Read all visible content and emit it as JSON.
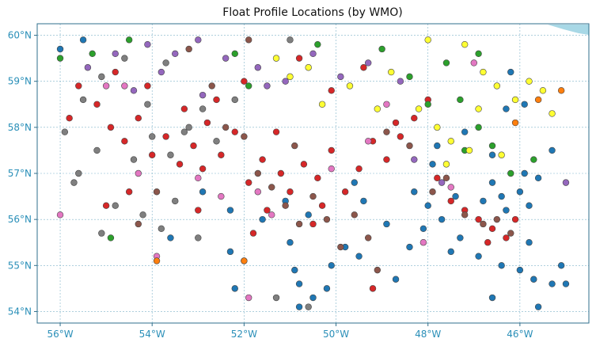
{
  "chart_data": {
    "type": "scatter",
    "title": "Float Profile Locations (by WMO)",
    "xlim": [
      -56.5,
      -44.5
    ],
    "ylim": [
      53.75,
      60.25
    ],
    "xticks": [
      -56,
      -54,
      -52,
      -50,
      -48,
      -46
    ],
    "xtick_labels": [
      "56°W",
      "54°W",
      "52°W",
      "50°W",
      "48°W",
      "46°W"
    ],
    "yticks": [
      54,
      55,
      56,
      57,
      58,
      59,
      60
    ],
    "ytick_labels": [
      "54°N",
      "55°N",
      "56°N",
      "57°N",
      "58°N",
      "59°N",
      "60°N"
    ],
    "grid": true,
    "land_color": "#a8d8e6",
    "series": [
      {
        "color": "#1f77b4",
        "points": [
          [
            -56.0,
            59.7
          ],
          [
            -55.5,
            59.9
          ],
          [
            -52.2,
            54.5
          ],
          [
            -51.0,
            55.5
          ],
          [
            -50.9,
            54.9
          ],
          [
            -50.8,
            54.6
          ],
          [
            -50.8,
            54.1
          ],
          [
            -50.5,
            54.3
          ],
          [
            -50.2,
            54.5
          ],
          [
            -50.1,
            55.0
          ],
          [
            -49.8,
            55.4
          ],
          [
            -49.5,
            55.2
          ],
          [
            -49.4,
            56.4
          ],
          [
            -48.9,
            55.9
          ],
          [
            -48.7,
            54.7
          ],
          [
            -48.4,
            55.4
          ],
          [
            -48.1,
            55.8
          ],
          [
            -48.0,
            56.3
          ],
          [
            -47.7,
            56.0
          ],
          [
            -47.5,
            55.3
          ],
          [
            -47.3,
            55.6
          ],
          [
            -46.9,
            55.2
          ],
          [
            -46.6,
            54.3
          ],
          [
            -46.4,
            55.0
          ],
          [
            -46.0,
            54.9
          ],
          [
            -45.8,
            55.5
          ],
          [
            -45.7,
            54.7
          ],
          [
            -45.6,
            54.1
          ],
          [
            -45.3,
            54.6
          ],
          [
            -45.1,
            55.0
          ],
          [
            -45.0,
            54.6
          ],
          [
            -46.8,
            56.4
          ],
          [
            -46.6,
            56.8
          ],
          [
            -46.4,
            56.5
          ],
          [
            -46.3,
            56.2
          ],
          [
            -46.0,
            56.6
          ],
          [
            -45.8,
            56.3
          ],
          [
            -45.9,
            57.0
          ],
          [
            -45.6,
            56.9
          ],
          [
            -45.3,
            57.5
          ],
          [
            -46.6,
            57.4
          ],
          [
            -46.3,
            58.4
          ],
          [
            -45.9,
            58.5
          ],
          [
            -46.2,
            59.2
          ],
          [
            -47.2,
            57.9
          ],
          [
            -47.8,
            57.6
          ],
          [
            -49.6,
            56.8
          ],
          [
            -50.6,
            56.1
          ],
          [
            -51.1,
            56.4
          ],
          [
            -51.6,
            56.0
          ],
          [
            -52.3,
            56.2
          ],
          [
            -52.9,
            56.6
          ],
          [
            -52.3,
            55.3
          ],
          [
            -53.6,
            55.6
          ],
          [
            -48.3,
            56.6
          ],
          [
            -47.9,
            57.2
          ],
          [
            -47.4,
            56.5
          ],
          [
            -52.0,
            55.1
          ]
        ]
      },
      {
        "color": "#d62728",
        "points": [
          [
            -55.6,
            58.9
          ],
          [
            -55.2,
            58.5
          ],
          [
            -54.9,
            58.0
          ],
          [
            -54.6,
            57.7
          ],
          [
            -54.3,
            58.2
          ],
          [
            -54.0,
            57.4
          ],
          [
            -53.7,
            57.8
          ],
          [
            -53.4,
            57.2
          ],
          [
            -53.1,
            57.6
          ],
          [
            -52.8,
            58.1
          ],
          [
            -52.5,
            57.4
          ],
          [
            -52.2,
            57.9
          ],
          [
            -51.9,
            56.8
          ],
          [
            -51.6,
            57.3
          ],
          [
            -51.3,
            57.9
          ],
          [
            -51.0,
            56.6
          ],
          [
            -50.7,
            57.2
          ],
          [
            -50.4,
            56.9
          ],
          [
            -50.1,
            57.5
          ],
          [
            -49.8,
            56.6
          ],
          [
            -49.5,
            57.1
          ],
          [
            -49.2,
            57.7
          ],
          [
            -48.9,
            57.3
          ],
          [
            -48.6,
            57.8
          ],
          [
            -48.3,
            58.2
          ],
          [
            -48.0,
            58.6
          ],
          [
            -47.8,
            56.9
          ],
          [
            -47.5,
            56.4
          ],
          [
            -47.2,
            56.2
          ],
          [
            -46.9,
            56.0
          ],
          [
            -46.6,
            55.8
          ],
          [
            -46.3,
            55.6
          ],
          [
            -46.7,
            55.5
          ],
          [
            -46.1,
            56.0
          ],
          [
            -52.0,
            59.0
          ],
          [
            -52.6,
            58.6
          ],
          [
            -53.3,
            58.4
          ],
          [
            -54.1,
            58.9
          ],
          [
            -54.8,
            59.2
          ],
          [
            -50.8,
            59.5
          ],
          [
            -50.1,
            58.8
          ],
          [
            -49.4,
            59.3
          ],
          [
            -48.7,
            58.1
          ],
          [
            -55.8,
            58.2
          ],
          [
            -53.0,
            56.2
          ],
          [
            -51.8,
            55.7
          ],
          [
            -50.5,
            55.9
          ],
          [
            -49.2,
            54.5
          ],
          [
            -54.5,
            56.6
          ],
          [
            -55.0,
            56.3
          ],
          [
            -51.2,
            57.0
          ],
          [
            -51.5,
            56.2
          ],
          [
            -52.9,
            57.1
          ],
          [
            -50.3,
            56.3
          ]
        ]
      },
      {
        "color": "#9467bd",
        "points": [
          [
            -55.4,
            59.3
          ],
          [
            -54.8,
            59.6
          ],
          [
            -54.1,
            59.8
          ],
          [
            -53.5,
            59.6
          ],
          [
            -53.0,
            59.9
          ],
          [
            -52.4,
            59.5
          ],
          [
            -51.7,
            59.3
          ],
          [
            -51.1,
            59.0
          ],
          [
            -50.5,
            59.6
          ],
          [
            -49.9,
            59.1
          ],
          [
            -49.3,
            59.4
          ],
          [
            -48.6,
            59.0
          ],
          [
            -54.4,
            58.8
          ],
          [
            -53.8,
            59.2
          ],
          [
            -52.9,
            58.7
          ],
          [
            -51.5,
            58.9
          ],
          [
            -48.3,
            57.3
          ],
          [
            -47.7,
            56.8
          ],
          [
            -45.0,
            56.8
          ]
        ]
      },
      {
        "color": "#2ca02c",
        "points": [
          [
            -56.0,
            59.5
          ],
          [
            -55.3,
            59.6
          ],
          [
            -54.5,
            59.9
          ],
          [
            -52.2,
            59.6
          ],
          [
            -50.4,
            59.8
          ],
          [
            -49.0,
            59.7
          ],
          [
            -48.4,
            59.1
          ],
          [
            -48.0,
            58.5
          ],
          [
            -47.6,
            59.4
          ],
          [
            -47.3,
            58.6
          ],
          [
            -46.9,
            58.0
          ],
          [
            -46.6,
            57.6
          ],
          [
            -46.2,
            57.0
          ],
          [
            -46.9,
            59.6
          ],
          [
            -45.7,
            57.3
          ],
          [
            -47.2,
            57.5
          ],
          [
            -54.9,
            55.6
          ],
          [
            -51.9,
            58.9
          ]
        ]
      },
      {
        "color": "#ffff33",
        "points": [
          [
            -51.3,
            59.5
          ],
          [
            -51.0,
            59.1
          ],
          [
            -50.6,
            59.3
          ],
          [
            -50.3,
            58.5
          ],
          [
            -49.7,
            58.9
          ],
          [
            -49.1,
            58.4
          ],
          [
            -48.8,
            59.2
          ],
          [
            -48.2,
            58.4
          ],
          [
            -47.8,
            58.0
          ],
          [
            -47.5,
            57.7
          ],
          [
            -47.1,
            57.5
          ],
          [
            -46.8,
            59.2
          ],
          [
            -46.5,
            58.9
          ],
          [
            -46.1,
            58.6
          ],
          [
            -45.8,
            59.0
          ],
          [
            -45.5,
            58.8
          ],
          [
            -46.9,
            58.4
          ],
          [
            -47.2,
            59.8
          ],
          [
            -48.0,
            59.9
          ],
          [
            -45.3,
            58.3
          ],
          [
            -46.4,
            57.4
          ],
          [
            -47.6,
            57.2
          ]
        ]
      },
      {
        "color": "#8c564b",
        "points": [
          [
            -52.0,
            57.8
          ],
          [
            -51.7,
            57.0
          ],
          [
            -51.4,
            56.7
          ],
          [
            -51.1,
            56.3
          ],
          [
            -50.8,
            55.9
          ],
          [
            -50.5,
            56.5
          ],
          [
            -50.2,
            56.0
          ],
          [
            -49.9,
            55.4
          ],
          [
            -49.6,
            56.1
          ],
          [
            -49.3,
            55.6
          ],
          [
            -48.9,
            57.9
          ],
          [
            -48.4,
            57.6
          ],
          [
            -47.9,
            56.6
          ],
          [
            -47.6,
            56.9
          ],
          [
            -47.2,
            56.1
          ],
          [
            -46.8,
            55.9
          ],
          [
            -46.5,
            56.0
          ],
          [
            -46.2,
            55.7
          ],
          [
            -52.7,
            58.9
          ],
          [
            -53.2,
            59.7
          ],
          [
            -51.9,
            59.9
          ],
          [
            -53.9,
            56.6
          ],
          [
            -49.1,
            54.9
          ],
          [
            -52.4,
            58.0
          ],
          [
            -50.9,
            57.6
          ],
          [
            -54.3,
            55.9
          ]
        ]
      },
      {
        "color": "#e377c2",
        "points": [
          [
            -56.0,
            56.1
          ],
          [
            -54.6,
            58.9
          ],
          [
            -54.3,
            57.0
          ],
          [
            -53.0,
            56.9
          ],
          [
            -52.5,
            56.5
          ],
          [
            -51.7,
            56.6
          ],
          [
            -51.4,
            56.1
          ],
          [
            -50.1,
            57.1
          ],
          [
            -49.3,
            57.7
          ],
          [
            -48.9,
            58.5
          ],
          [
            -48.1,
            55.5
          ],
          [
            -47.5,
            56.7
          ],
          [
            -47.0,
            59.4
          ],
          [
            -53.9,
            55.2
          ],
          [
            -51.9,
            54.3
          ],
          [
            -55.0,
            58.9
          ]
        ]
      },
      {
        "color": "#7f7f7f",
        "points": [
          [
            -55.9,
            57.9
          ],
          [
            -55.6,
            57.0
          ],
          [
            -55.2,
            57.5
          ],
          [
            -54.8,
            56.3
          ],
          [
            -54.4,
            57.3
          ],
          [
            -54.0,
            57.8
          ],
          [
            -53.6,
            57.4
          ],
          [
            -53.2,
            58.0
          ],
          [
            -52.9,
            58.4
          ],
          [
            -55.5,
            58.6
          ],
          [
            -55.1,
            59.1
          ],
          [
            -54.6,
            59.5
          ],
          [
            -54.2,
            56.1
          ],
          [
            -53.5,
            56.4
          ],
          [
            -53.0,
            55.6
          ],
          [
            -52.6,
            57.7
          ],
          [
            -52.2,
            58.6
          ],
          [
            -55.1,
            55.7
          ],
          [
            -53.8,
            55.8
          ],
          [
            -51.3,
            54.3
          ],
          [
            -50.6,
            54.1
          ],
          [
            -51.0,
            59.9
          ],
          [
            -53.3,
            57.9
          ],
          [
            -54.1,
            58.5
          ],
          [
            -55.7,
            56.8
          ],
          [
            -53.7,
            59.4
          ]
        ]
      },
      {
        "color": "#ff7f0e",
        "points": [
          [
            -53.9,
            55.1
          ],
          [
            -52.0,
            55.1
          ],
          [
            -46.1,
            58.1
          ],
          [
            -45.6,
            58.6
          ],
          [
            -45.1,
            58.8
          ]
        ]
      },
      {
        "color": "#17becf",
        "points": []
      }
    ]
  }
}
